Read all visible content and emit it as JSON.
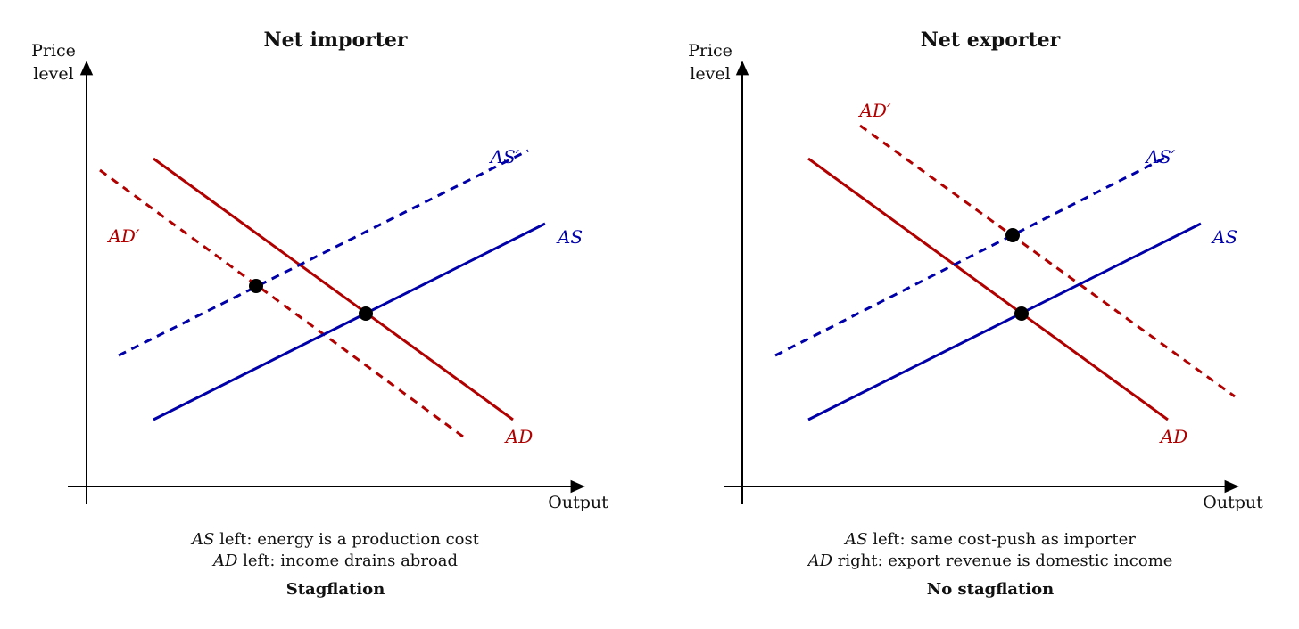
{
  "colors": {
    "ad": "#b00000",
    "as": "#0000a8",
    "axis": "#000000",
    "point": "#000000"
  },
  "panels": [
    {
      "id": "importer",
      "title": "Net importer",
      "y_axis_label_line1": "Price",
      "y_axis_label_line2": "level",
      "x_axis_label": "Output",
      "curve_labels": {
        "as": "AS",
        "as_shifted": "AS′",
        "ad": "AD",
        "ad_shifted": "AD′"
      },
      "caption_line1_var": "AS",
      "caption_line1_text": " left: energy is a production cost",
      "caption_line2_var": "AD",
      "caption_line2_text": " left: income drains abroad",
      "verdict": "Stagflation"
    },
    {
      "id": "exporter",
      "title": "Net exporter",
      "y_axis_label_line1": "Price",
      "y_axis_label_line2": "level",
      "x_axis_label": "Output",
      "curve_labels": {
        "as": "AS",
        "as_shifted": "AS′",
        "ad": "AD",
        "ad_shifted": "AD′"
      },
      "caption_line1_var": "AS",
      "caption_line1_text": " left: same cost-push as importer",
      "caption_line2_var": "AD",
      "caption_line2_text": " right: export revenue is domestic income",
      "verdict": "No stagflation"
    }
  ]
}
